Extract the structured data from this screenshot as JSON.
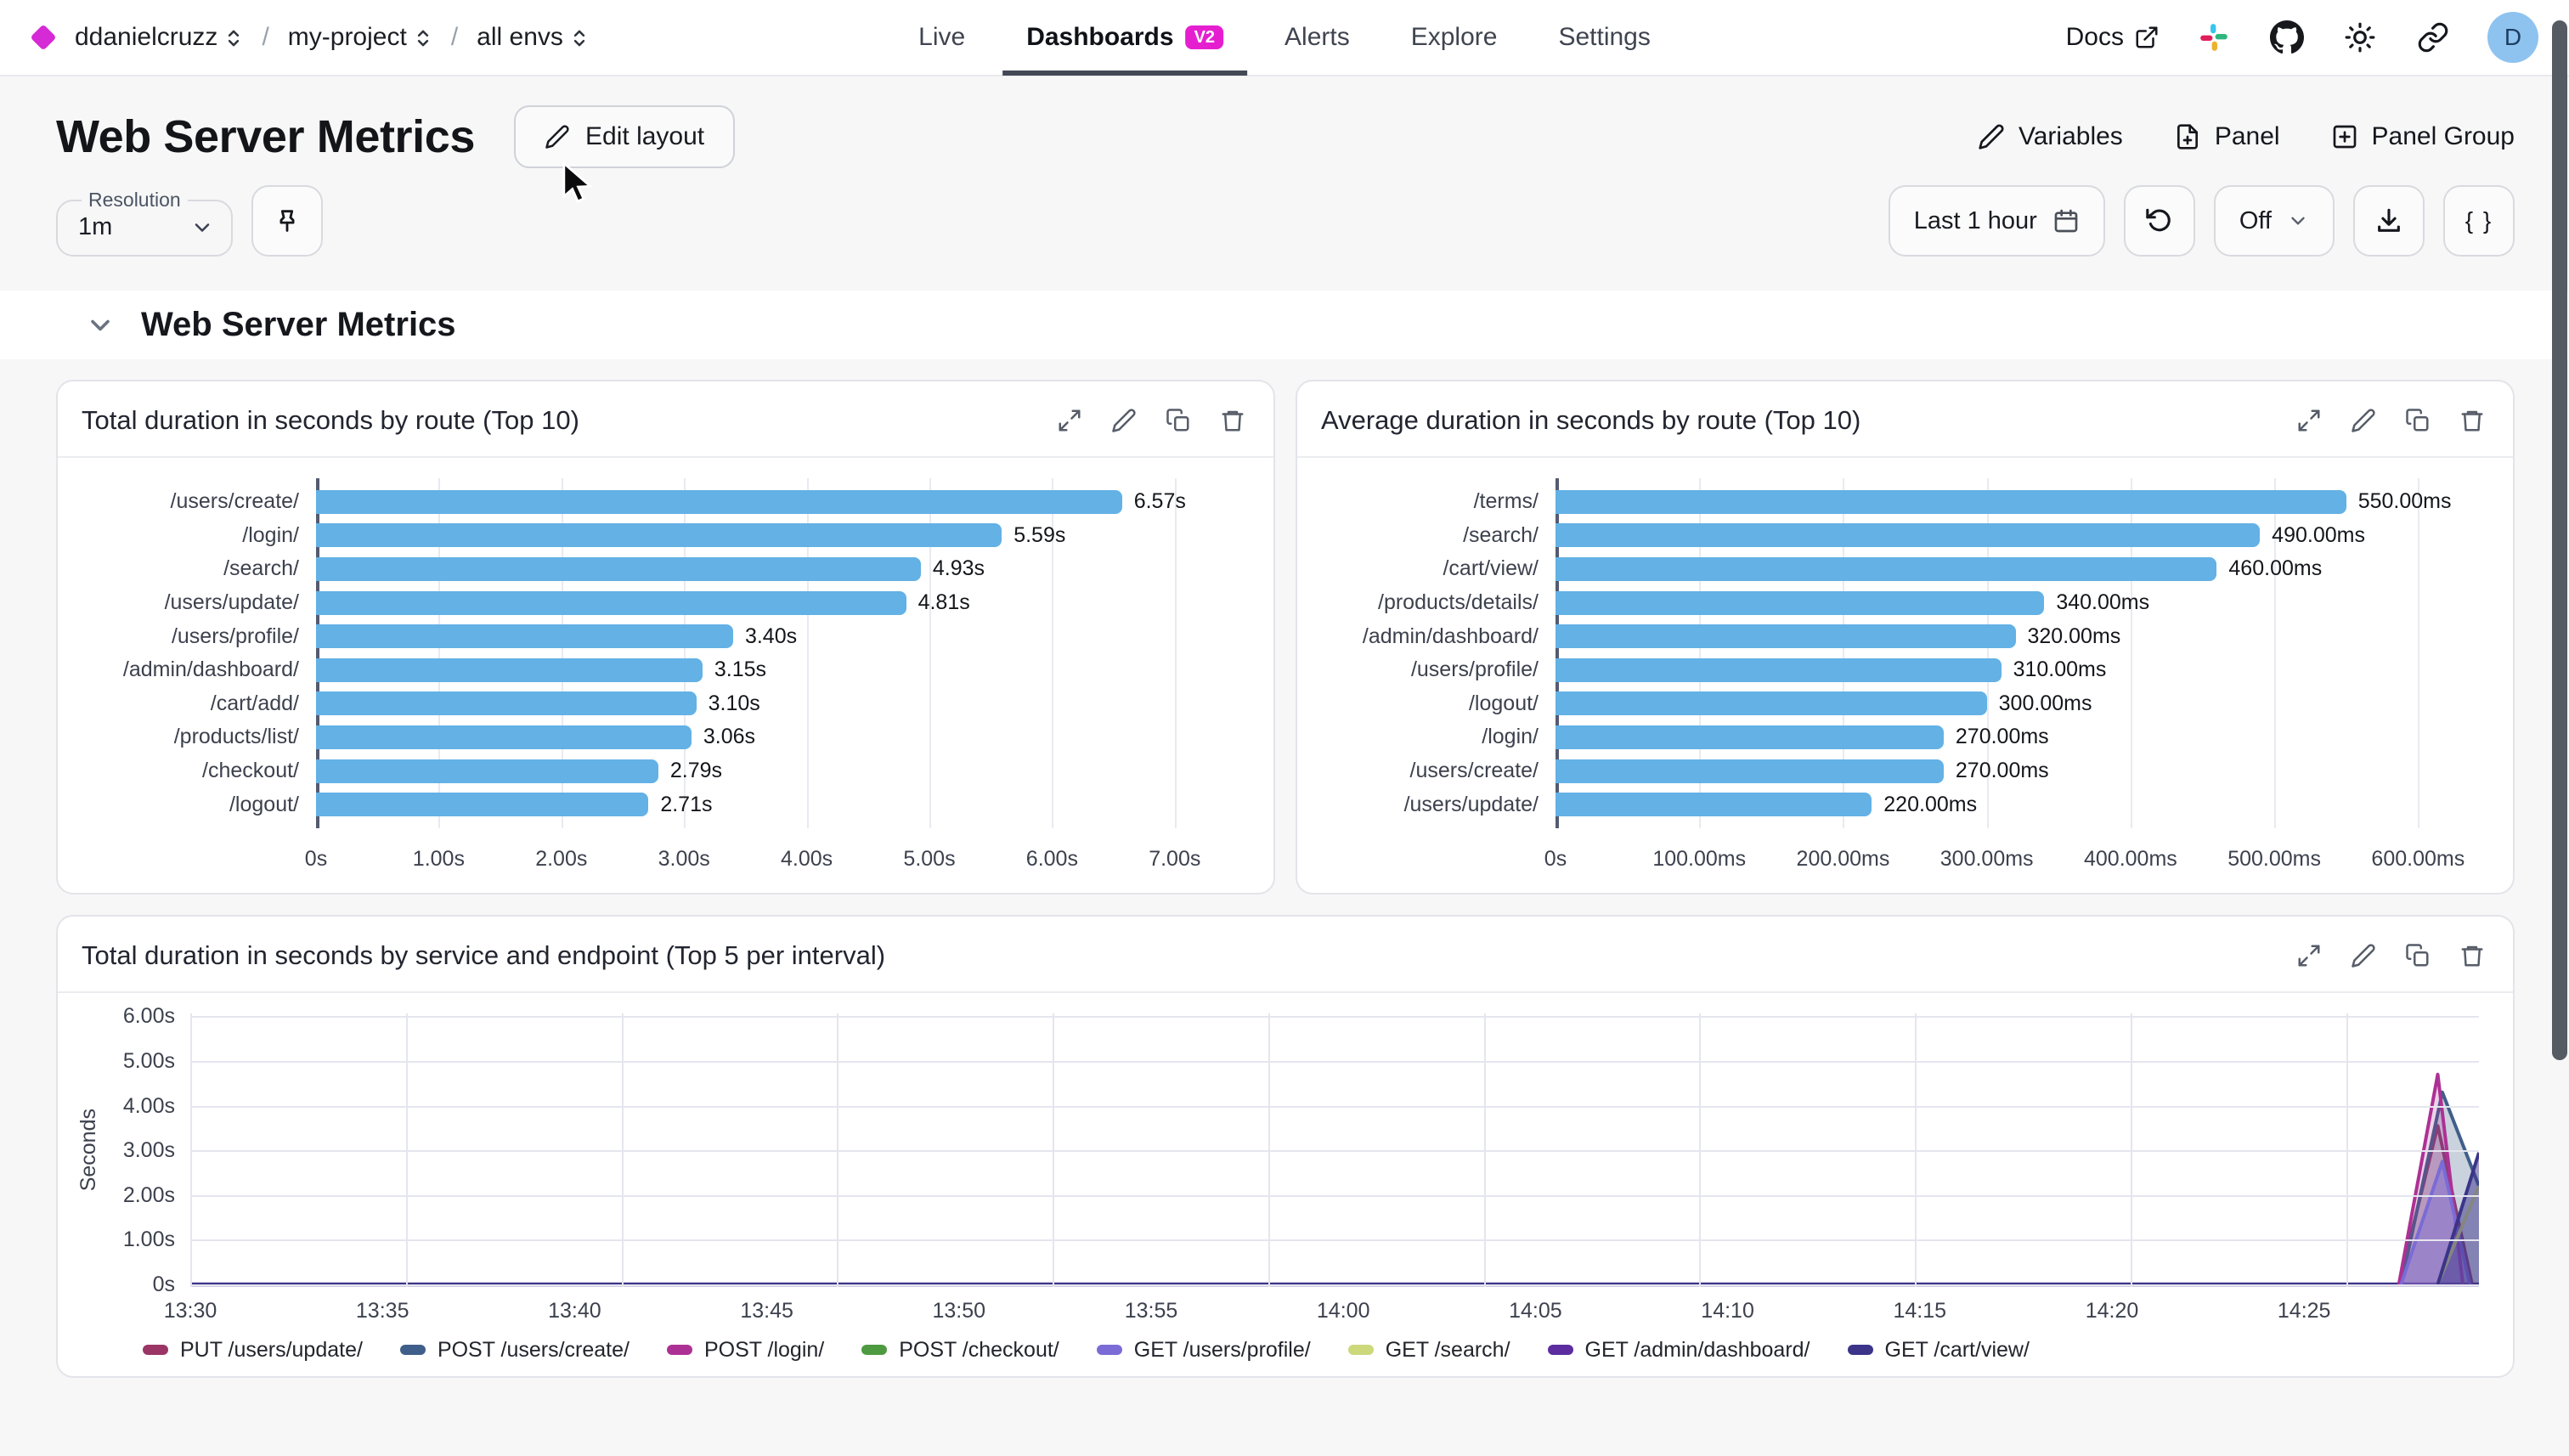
{
  "breadcrumb": {
    "org": "ddanielcruzz",
    "project": "my-project",
    "env": "all envs"
  },
  "nav": {
    "items": [
      {
        "label": "Live"
      },
      {
        "label": "Dashboards",
        "badge": "V2"
      },
      {
        "label": "Alerts"
      },
      {
        "label": "Explore"
      },
      {
        "label": "Settings"
      }
    ]
  },
  "topbar_right": {
    "docs_label": "Docs",
    "avatar_initial": "D"
  },
  "page": {
    "title": "Web Server Metrics",
    "edit_layout_label": "Edit layout",
    "variables_label": "Variables",
    "panel_label": "Panel",
    "panel_group_label": "Panel Group"
  },
  "controls": {
    "resolution_label": "Resolution",
    "resolution_value": "1m",
    "time_range": "Last 1 hour",
    "refresh_mode": "Off",
    "code_button_label": "{ }"
  },
  "section": {
    "title": "Web Server Metrics"
  },
  "colors": {
    "bar": "#63b1e5",
    "accent_magenta": "#e51fd0",
    "baseline_indigo": "#3c3588"
  },
  "chart_data": [
    {
      "type": "bar",
      "orientation": "horizontal",
      "title": "Total duration in seconds by route (Top 10)",
      "categories": [
        "/users/create/",
        "/login/",
        "/search/",
        "/users/update/",
        "/users/profile/",
        "/admin/dashboard/",
        "/cart/add/",
        "/products/list/",
        "/checkout/",
        "/logout/"
      ],
      "values": [
        6.57,
        5.59,
        4.93,
        4.81,
        3.4,
        3.15,
        3.1,
        3.06,
        2.79,
        2.71
      ],
      "value_labels": [
        "6.57s",
        "5.59s",
        "4.93s",
        "4.81s",
        "3.40s",
        "3.15s",
        "3.10s",
        "3.06s",
        "2.79s",
        "2.71s"
      ],
      "x_ticks": [
        {
          "label": "0s",
          "value": 0
        },
        {
          "label": "1.00s",
          "value": 1
        },
        {
          "label": "2.00s",
          "value": 2
        },
        {
          "label": "3.00s",
          "value": 3
        },
        {
          "label": "4.00s",
          "value": 4
        },
        {
          "label": "5.00s",
          "value": 5
        },
        {
          "label": "6.00s",
          "value": 6
        },
        {
          "label": "7.00s",
          "value": 7
        }
      ],
      "axis_max": 7.5,
      "unit": "s"
    },
    {
      "type": "bar",
      "orientation": "horizontal",
      "title": "Average duration in seconds by route (Top 10)",
      "categories": [
        "/terms/",
        "/search/",
        "/cart/view/",
        "/products/details/",
        "/admin/dashboard/",
        "/users/profile/",
        "/logout/",
        "/login/",
        "/users/create/",
        "/users/update/"
      ],
      "values": [
        550,
        490,
        460,
        340,
        320,
        310,
        300,
        270,
        270,
        220
      ],
      "value_labels": [
        "550.00ms",
        "490.00ms",
        "460.00ms",
        "340.00ms",
        "320.00ms",
        "310.00ms",
        "300.00ms",
        "270.00ms",
        "270.00ms",
        "220.00ms"
      ],
      "x_ticks": [
        {
          "label": "0s",
          "value": 0
        },
        {
          "label": "100.00ms",
          "value": 100
        },
        {
          "label": "200.00ms",
          "value": 200
        },
        {
          "label": "300.00ms",
          "value": 300
        },
        {
          "label": "400.00ms",
          "value": 400
        },
        {
          "label": "500.00ms",
          "value": 500
        },
        {
          "label": "600.00ms",
          "value": 600
        }
      ],
      "axis_max": 640,
      "unit": "ms"
    },
    {
      "type": "area",
      "title": "Total duration in seconds by service and endpoint (Top 5 per interval)",
      "ylabel": "Seconds",
      "y_max": 6,
      "y_ticks": [
        {
          "label": "0s",
          "value": 0
        },
        {
          "label": "1.00s",
          "value": 1
        },
        {
          "label": "2.00s",
          "value": 2
        },
        {
          "label": "3.00s",
          "value": 3
        },
        {
          "label": "4.00s",
          "value": 4
        },
        {
          "label": "5.00s",
          "value": 5
        },
        {
          "label": "6.00s",
          "value": 6
        }
      ],
      "x_ticks": [
        "13:30",
        "13:35",
        "13:40",
        "13:45",
        "13:50",
        "13:55",
        "14:00",
        "14:05",
        "14:10",
        "14:15",
        "14:20",
        "14:25"
      ],
      "series": [
        {
          "name": "PUT /users/update/",
          "color": "#9b3566",
          "fill_opacity": 0.18,
          "spike": [
            [
              0.965,
              0
            ],
            [
              0.982,
              3.55
            ],
            [
              0.997,
              0
            ]
          ]
        },
        {
          "name": "POST /users/create/",
          "color": "#3f5f8a",
          "fill_opacity": 0.28,
          "spike": [
            [
              0.966,
              0
            ],
            [
              0.984,
              4.3
            ],
            [
              1,
              2.2
            ]
          ]
        },
        {
          "name": "POST /login/",
          "color": "#ad3194",
          "fill_opacity": 0.22,
          "spike": [
            [
              0.965,
              0
            ],
            [
              0.982,
              4.7
            ],
            [
              0.993,
              0
            ]
          ]
        },
        {
          "name": "POST /checkout/",
          "color": "#4e9a40",
          "fill_opacity": 0,
          "spike": []
        },
        {
          "name": "GET /users/profile/",
          "color": "#7a6bd6",
          "fill_opacity": 0.45,
          "spike": [
            [
              0.966,
              0
            ],
            [
              0.984,
              2.75
            ],
            [
              0.996,
              0
            ]
          ]
        },
        {
          "name": "GET /search/",
          "color": "#ccd87a",
          "fill_opacity": 0,
          "spike": [
            [
              0.982,
              0
            ],
            [
              1,
              2.2
            ]
          ]
        },
        {
          "name": "GET /admin/dashboard/",
          "color": "#5b2d9f",
          "fill_opacity": 0,
          "spike": []
        },
        {
          "name": "GET /cart/view/",
          "color": "#3b3489",
          "fill_opacity": 0.5,
          "spike": [
            [
              0.982,
              0
            ],
            [
              1,
              2.95
            ]
          ]
        }
      ]
    }
  ]
}
